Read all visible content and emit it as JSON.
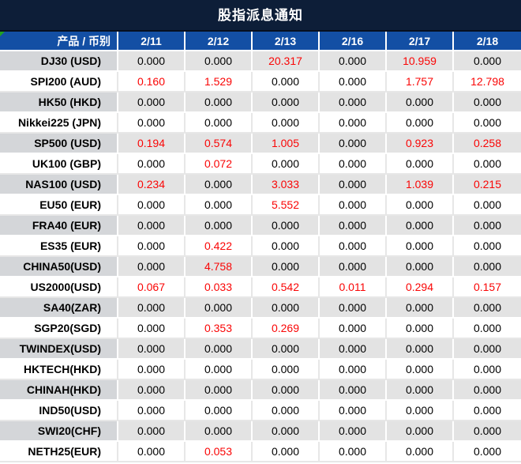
{
  "title": "股指派息通知",
  "chart_data": {
    "type": "table",
    "title": "股指派息通知",
    "columns": [
      "产品 / 币别",
      "2/11",
      "2/12",
      "2/13",
      "2/16",
      "2/17",
      "2/18"
    ],
    "value_decimals": 3,
    "highlight_rule": "values greater than zero shown in red",
    "rows": [
      {
        "product": "DJ30 (USD)",
        "values": [
          0,
          0,
          20.317,
          0,
          10.959,
          0
        ]
      },
      {
        "product": "SPI200 (AUD)",
        "values": [
          0.16,
          1.529,
          0,
          0,
          1.757,
          12.798
        ]
      },
      {
        "product": "HK50 (HKD)",
        "values": [
          0,
          0,
          0,
          0,
          0,
          0
        ]
      },
      {
        "product": "Nikkei225 (JPN)",
        "values": [
          0,
          0,
          0,
          0,
          0,
          0
        ]
      },
      {
        "product": "SP500 (USD)",
        "values": [
          0.194,
          0.574,
          1.005,
          0,
          0.923,
          0.258
        ]
      },
      {
        "product": "UK100 (GBP)",
        "values": [
          0,
          0.072,
          0,
          0,
          0,
          0
        ]
      },
      {
        "product": "NAS100 (USD)",
        "values": [
          0.234,
          0,
          3.033,
          0,
          1.039,
          0.215
        ]
      },
      {
        "product": "EU50 (EUR)",
        "values": [
          0,
          0,
          5.552,
          0,
          0,
          0
        ]
      },
      {
        "product": "FRA40 (EUR)",
        "values": [
          0,
          0,
          0,
          0,
          0,
          0
        ]
      },
      {
        "product": "ES35 (EUR)",
        "values": [
          0,
          0.422,
          0,
          0,
          0,
          0
        ]
      },
      {
        "product": "CHINA50(USD)",
        "values": [
          0,
          4.758,
          0,
          0,
          0,
          0
        ]
      },
      {
        "product": "US2000(USD)",
        "values": [
          0.067,
          0.033,
          0.542,
          0.011,
          0.294,
          0.157
        ]
      },
      {
        "product": "SA40(ZAR)",
        "values": [
          0,
          0,
          0,
          0,
          0,
          0
        ]
      },
      {
        "product": "SGP20(SGD)",
        "values": [
          0,
          0.353,
          0.269,
          0,
          0,
          0
        ]
      },
      {
        "product": "TWINDEX(USD)",
        "values": [
          0,
          0,
          0,
          0,
          0,
          0
        ]
      },
      {
        "product": "HKTECH(HKD)",
        "values": [
          0,
          0,
          0,
          0,
          0,
          0
        ]
      },
      {
        "product": "CHINAH(HKD)",
        "values": [
          0,
          0,
          0,
          0,
          0,
          0
        ]
      },
      {
        "product": "IND50(USD)",
        "values": [
          0,
          0,
          0,
          0,
          0,
          0
        ]
      },
      {
        "product": "SWI20(CHF)",
        "values": [
          0,
          0,
          0,
          0,
          0,
          0
        ]
      },
      {
        "product": "NETH25(EUR)",
        "values": [
          0,
          0.053,
          0,
          0,
          0,
          0
        ]
      }
    ]
  },
  "colors": {
    "title_bg": "#0d1e38",
    "divider": "#060f1f",
    "header_bg": "#134fa4",
    "header_text": "#ffffff",
    "row_gray": "#e3e3e3",
    "row_label_gray": "#d4d6d9",
    "row_white": "#ffffff",
    "grid_on_white": "#e7e7e7",
    "text": "#000000",
    "red": "#fa0505",
    "corner_green": "#21a121"
  }
}
